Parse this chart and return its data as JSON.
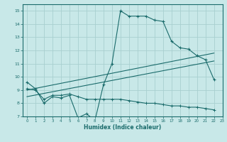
{
  "xlabel": "Humidex (Indice chaleur)",
  "xlim": [
    -0.5,
    23
  ],
  "ylim": [
    7,
    15.5
  ],
  "xticks": [
    0,
    1,
    2,
    3,
    4,
    5,
    6,
    7,
    8,
    9,
    10,
    11,
    12,
    13,
    14,
    15,
    16,
    17,
    18,
    19,
    20,
    21,
    22,
    23
  ],
  "yticks": [
    7,
    8,
    9,
    10,
    11,
    12,
    13,
    14,
    15
  ],
  "bg_color": "#c8e8e8",
  "grid_color": "#a8d0d0",
  "line_color": "#1a6b6b",
  "line1_x": [
    0,
    1,
    2,
    3,
    4,
    5,
    6,
    7,
    8,
    9,
    10,
    11,
    12,
    13,
    14,
    15,
    16,
    17,
    18,
    19,
    20,
    21,
    22
  ],
  "line1_y": [
    9.6,
    9.1,
    8.0,
    8.5,
    8.4,
    8.6,
    6.9,
    7.2,
    6.7,
    9.4,
    11.0,
    15.0,
    14.6,
    14.6,
    14.6,
    14.3,
    14.2,
    12.7,
    12.2,
    12.1,
    11.6,
    11.3,
    9.8
  ],
  "line2_x": [
    0,
    1,
    2,
    3,
    4,
    5,
    6,
    7,
    8,
    9,
    10,
    11,
    12,
    13,
    14,
    15,
    16,
    17,
    18,
    19,
    20,
    21,
    22
  ],
  "line2_y": [
    9.1,
    9.0,
    8.3,
    8.6,
    8.6,
    8.7,
    8.5,
    8.3,
    8.3,
    8.3,
    8.3,
    8.3,
    8.2,
    8.1,
    8.0,
    8.0,
    7.9,
    7.8,
    7.8,
    7.7,
    7.7,
    7.6,
    7.5
  ],
  "line3_x": [
    0,
    22
  ],
  "line3_y": [
    9.0,
    11.8
  ],
  "line4_x": [
    0,
    22
  ],
  "line4_y": [
    8.5,
    11.2
  ]
}
